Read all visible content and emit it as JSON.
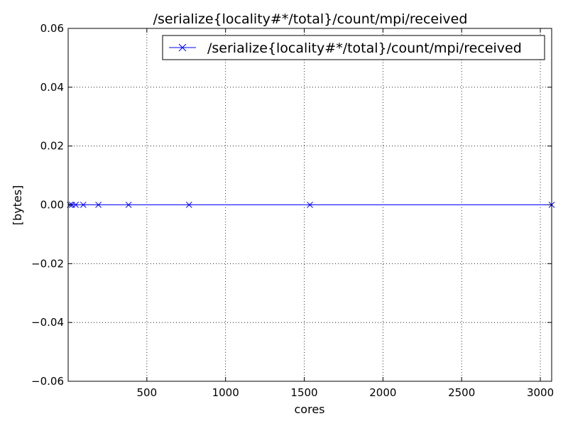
{
  "chart_data": {
    "type": "line",
    "title": "/serialize{locality#*/total}/count/mpi/received",
    "xlabel": "cores",
    "ylabel": "[bytes]",
    "xlim": [
      0,
      3072
    ],
    "ylim": [
      -0.06,
      0.06
    ],
    "x_ticks": [
      500,
      1000,
      1500,
      2000,
      2500,
      3000
    ],
    "x_tick_labels": [
      "500",
      "1000",
      "1500",
      "2000",
      "2500",
      "3000"
    ],
    "y_ticks": [
      -0.06,
      -0.04,
      -0.02,
      0.0,
      0.02,
      0.04,
      0.06
    ],
    "y_tick_labels": [
      "−0.06",
      "−0.04",
      "−0.02",
      "0.00",
      "0.02",
      "0.04",
      "0.06"
    ],
    "grid": true,
    "legend_position": "top-right",
    "series": [
      {
        "name": "/serialize{locality#*/total}/count/mpi/received",
        "color": "#0000ff",
        "marker": "x",
        "x": [
          12,
          24,
          48,
          96,
          192,
          384,
          768,
          1536,
          3072
        ],
        "y": [
          0,
          0,
          0,
          0,
          0,
          0,
          0,
          0,
          0
        ]
      }
    ]
  }
}
